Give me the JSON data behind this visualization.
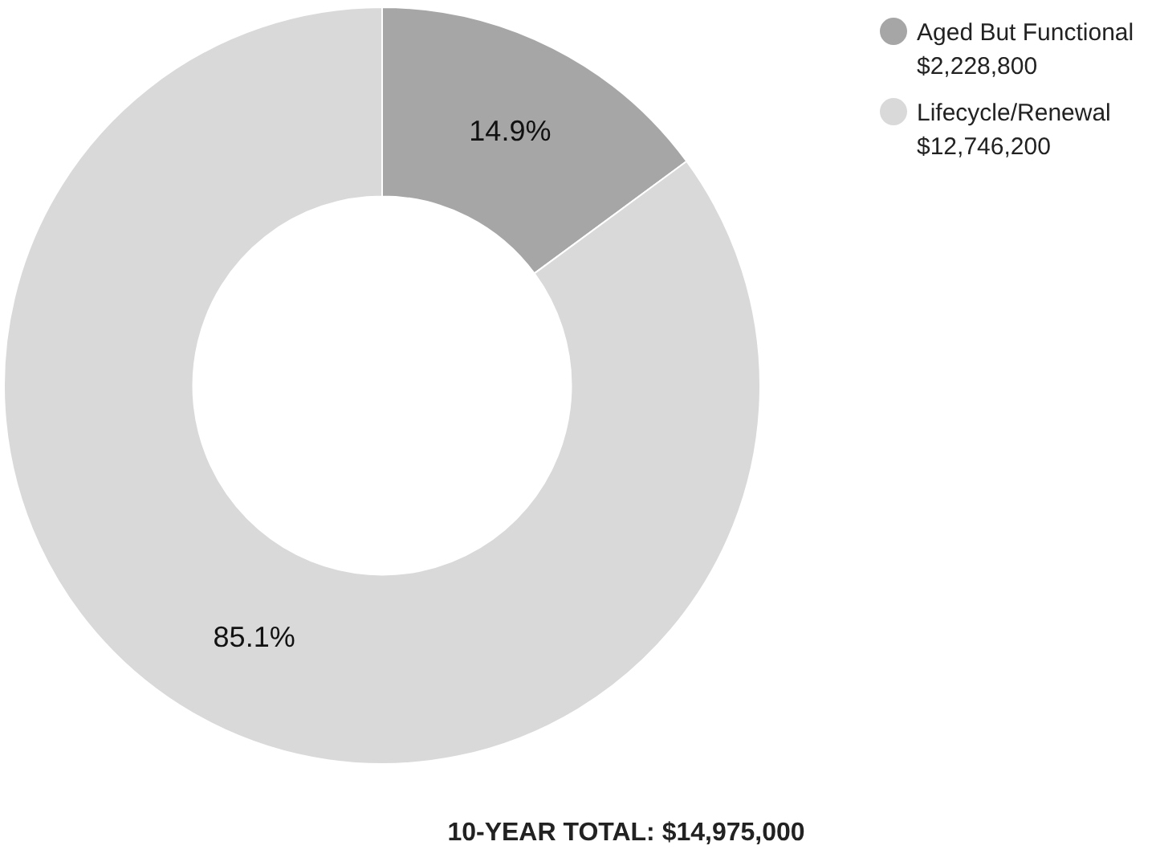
{
  "chart_data": {
    "type": "donut",
    "categories": [
      "Aged But Functional\n$2,228,800",
      "Lifecycle/Renewal\n$12,746,200"
    ],
    "values": [
      14.9,
      85.1
    ],
    "colors": [
      "#a6a6a6",
      "#d9d9d9"
    ],
    "value_labels": [
      "14.9%",
      "85.1%"
    ],
    "legend": "top right",
    "annotations": [
      "10-YEAR TOTAL: $14,975,000"
    ]
  }
}
